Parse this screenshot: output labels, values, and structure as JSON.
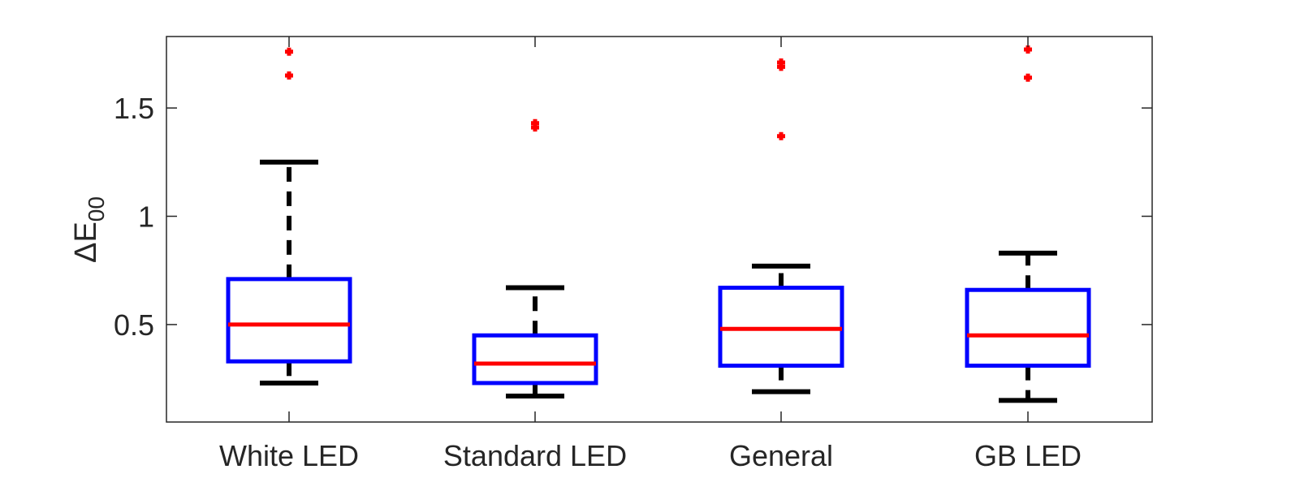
{
  "chart_data": {
    "type": "box",
    "title": "",
    "xlabel": "",
    "ylabel": "ΔE",
    "ylabel_subscript": "00",
    "ylim": [
      0.05,
      1.83
    ],
    "yticks": [
      0.5,
      1,
      1.5
    ],
    "ytick_labels": [
      "0.5",
      "1",
      "1.5"
    ],
    "grid": false,
    "categories": [
      "White LED",
      "Standard LED",
      "General",
      "GB LED"
    ],
    "boxes": [
      {
        "category": "White LED",
        "whisker_low": 0.23,
        "q1": 0.33,
        "median": 0.5,
        "q3": 0.71,
        "whisker_high": 1.25,
        "outliers": [
          1.65,
          1.76
        ]
      },
      {
        "category": "Standard LED",
        "whisker_low": 0.17,
        "q1": 0.23,
        "median": 0.32,
        "q3": 0.45,
        "whisker_high": 0.67,
        "outliers": [
          1.41,
          1.43
        ]
      },
      {
        "category": "General",
        "whisker_low": 0.19,
        "q1": 0.31,
        "median": 0.48,
        "q3": 0.67,
        "whisker_high": 0.77,
        "outliers": [
          1.37,
          1.69,
          1.71
        ]
      },
      {
        "category": "GB LED",
        "whisker_low": 0.15,
        "q1": 0.31,
        "median": 0.45,
        "q3": 0.66,
        "whisker_high": 0.83,
        "outliers": [
          1.64,
          1.77
        ]
      }
    ],
    "colors": {
      "box": "#0000ff",
      "median": "#ff0000",
      "whisker": "#000000",
      "outlier": "#ff0000",
      "axes": "#262626"
    }
  }
}
